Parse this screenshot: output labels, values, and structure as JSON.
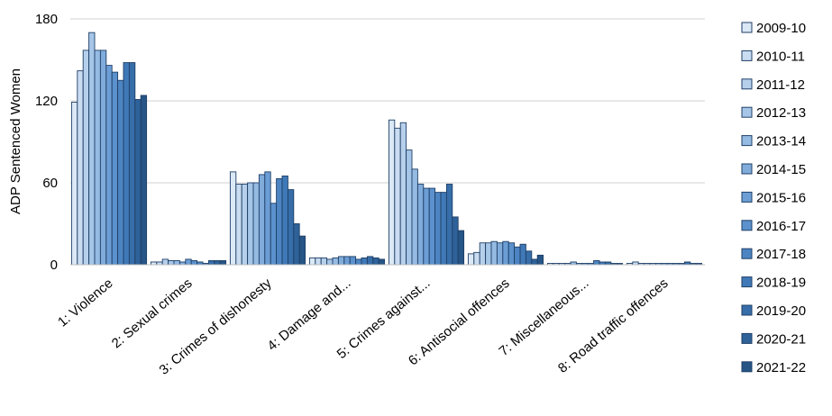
{
  "chart_data": {
    "type": "bar",
    "ylabel": "ADP Sentenced Women",
    "xlabel": "",
    "ylim": [
      0,
      180
    ],
    "yticks": [
      "0",
      "60",
      "120",
      "180"
    ],
    "grid": true,
    "legend_position": "right",
    "categories": [
      "1: Violence",
      "2: Sexual crimes",
      "3: Crimes of dishonesty",
      "4: Damage and...",
      "5: Crimes against...",
      "6: Antisocial offences",
      "7: Miscellaneous...",
      "8: Road traffic offences"
    ],
    "series": [
      {
        "name": "2009-10",
        "color": "#dbe8f6",
        "values": [
          119,
          2,
          68,
          5,
          106,
          8,
          1,
          1
        ]
      },
      {
        "name": "2010-11",
        "color": "#c9dcf1",
        "values": [
          142,
          2,
          59,
          5,
          100,
          9,
          1,
          2
        ]
      },
      {
        "name": "2011-12",
        "color": "#b6d0ec",
        "values": [
          157,
          4,
          59,
          5,
          104,
          16,
          1,
          1
        ]
      },
      {
        "name": "2012-13",
        "color": "#a6c6e8",
        "values": [
          170,
          3,
          60,
          4,
          84,
          16,
          1,
          1
        ]
      },
      {
        "name": "2013-14",
        "color": "#95bbe3",
        "values": [
          157,
          3,
          60,
          5,
          70,
          17,
          2,
          1
        ]
      },
      {
        "name": "2014-15",
        "color": "#80acdc",
        "values": [
          157,
          2,
          66,
          6,
          59,
          16,
          1,
          1
        ]
      },
      {
        "name": "2015-16",
        "color": "#6c9ed5",
        "values": [
          146,
          4,
          68,
          6,
          56,
          17,
          1,
          1
        ]
      },
      {
        "name": "2016-17",
        "color": "#5b91cd",
        "values": [
          141,
          3,
          45,
          6,
          56,
          16,
          1,
          1
        ]
      },
      {
        "name": "2017-18",
        "color": "#4d85c3",
        "values": [
          135,
          2,
          63,
          4,
          53,
          13,
          3,
          1
        ]
      },
      {
        "name": "2018-19",
        "color": "#4079b7",
        "values": [
          148,
          1,
          65,
          5,
          53,
          15,
          2,
          1
        ]
      },
      {
        "name": "2019-20",
        "color": "#376ea9",
        "values": [
          148,
          3,
          55,
          6,
          59,
          10,
          2,
          2
        ]
      },
      {
        "name": "2020-21",
        "color": "#2e6299",
        "values": [
          121,
          3,
          30,
          5,
          35,
          4,
          1,
          1
        ]
      },
      {
        "name": "2021-22",
        "color": "#265586",
        "values": [
          124,
          3,
          21,
          4,
          25,
          7,
          1,
          1
        ]
      }
    ]
  }
}
